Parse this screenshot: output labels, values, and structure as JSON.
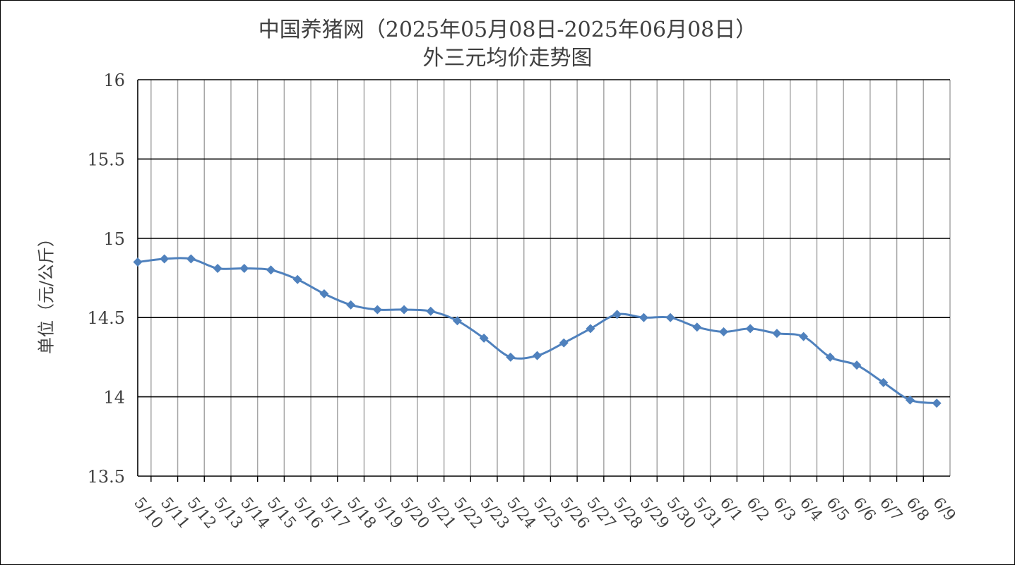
{
  "chart_data": {
    "type": "line",
    "title": "中国养猪网（2025年05月08日-2025年06月08日）",
    "subtitle": "外三元均价走势图",
    "xlabel": "",
    "ylabel": "单位（元/公斤）",
    "ylim": [
      13.5,
      16
    ],
    "yticks": [
      "13.5",
      "14",
      "14.5",
      "15",
      "15.5",
      "16"
    ],
    "grid": true,
    "legend": "none",
    "line_color": "#4F81BD",
    "categories": [
      "5/10",
      "5/11",
      "5/12",
      "5/13",
      "5/14",
      "5/15",
      "5/16",
      "5/17",
      "5/18",
      "5/19",
      "5/20",
      "5/21",
      "5/22",
      "5/23",
      "5/24",
      "5/25",
      "5/26",
      "5/27",
      "5/28",
      "5/29",
      "5/30",
      "5/31",
      "6/1",
      "6/2",
      "6/3",
      "6/4",
      "6/5",
      "6/6",
      "6/7",
      "6/8",
      "6/9"
    ],
    "values": [
      14.85,
      14.87,
      14.87,
      14.81,
      14.81,
      14.8,
      14.74,
      14.65,
      14.58,
      14.55,
      14.55,
      14.54,
      14.48,
      14.37,
      14.25,
      14.26,
      14.34,
      14.43,
      14.52,
      14.5,
      14.5,
      14.44,
      14.41,
      14.43,
      14.4,
      14.38,
      14.25,
      14.2,
      14.09,
      13.98,
      13.96
    ]
  }
}
